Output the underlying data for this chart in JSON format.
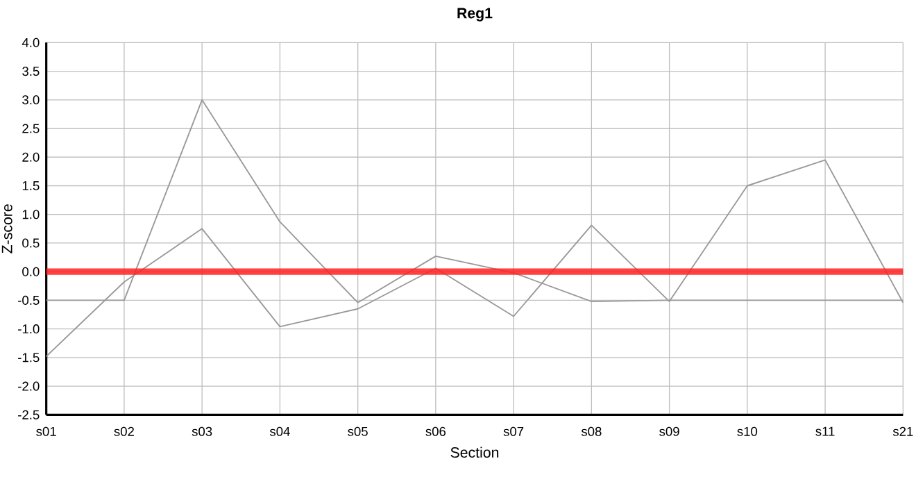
{
  "chart_data": {
    "type": "line",
    "title": "Reg1",
    "xlabel": "Section",
    "ylabel": "Z-score",
    "categories": [
      "s01",
      "s02",
      "s03",
      "s04",
      "s05",
      "s06",
      "s07",
      "s08",
      "s09",
      "s10",
      "s11",
      "s21"
    ],
    "series": [
      {
        "color": "#999999",
        "values": [
          -0.5,
          -0.5,
          3.0,
          0.87,
          -0.54,
          0.27,
          -0.02,
          -0.52,
          -0.5,
          -0.5,
          -0.5,
          -0.5
        ]
      },
      {
        "color": "#999999",
        "values": [
          -1.48,
          -0.18,
          0.75,
          -0.96,
          -0.65,
          0.06,
          -0.78,
          0.81,
          -0.52,
          1.5,
          1.95,
          -0.54
        ]
      }
    ],
    "ref_lines": [
      {
        "axis": "y",
        "value": 0,
        "color": "#ff2020"
      }
    ],
    "ylim": [
      -2.5,
      4.0
    ],
    "yticks": [
      {
        "value": -2.5,
        "label": "-2.5"
      },
      {
        "value": -2.0,
        "label": "-2.0"
      },
      {
        "value": -1.5,
        "label": "-1.5"
      },
      {
        "value": -1.0,
        "label": "-1.0"
      },
      {
        "value": -0.5,
        "label": "-0.5"
      },
      {
        "value": 0,
        "label": "0.0"
      },
      {
        "value": 0.5,
        "label": "0.5"
      },
      {
        "value": 1.0,
        "label": "1.0"
      },
      {
        "value": 1.5,
        "label": "1.5"
      },
      {
        "value": 2.0,
        "label": "2.0"
      },
      {
        "value": 2.5,
        "label": "2.5"
      },
      {
        "value": 3.0,
        "label": "3.0"
      },
      {
        "value": 3.5,
        "label": "3.5"
      },
      {
        "value": 4.0,
        "label": "4.0"
      }
    ],
    "grid": true,
    "marker": "none",
    "line_style": "solid"
  }
}
